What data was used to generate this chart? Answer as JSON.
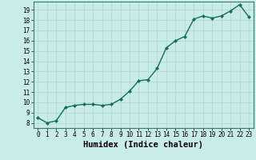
{
  "x": [
    0,
    1,
    2,
    3,
    4,
    5,
    6,
    7,
    8,
    9,
    10,
    11,
    12,
    13,
    14,
    15,
    16,
    17,
    18,
    19,
    20,
    21,
    22,
    23
  ],
  "y": [
    8.5,
    8.0,
    8.2,
    9.5,
    9.7,
    9.8,
    9.8,
    9.7,
    9.8,
    10.3,
    11.1,
    12.1,
    12.2,
    13.3,
    15.3,
    16.0,
    16.4,
    18.1,
    18.4,
    18.2,
    18.4,
    18.9,
    19.5,
    18.3
  ],
  "line_color": "#1a6b5e",
  "marker": "D",
  "marker_size": 2.0,
  "bg_color": "#c8ecea",
  "grid_color": "#b8d8d4",
  "xlabel": "Humidex (Indice chaleur)",
  "xlim": [
    -0.5,
    23.5
  ],
  "ylim": [
    7.5,
    19.8
  ],
  "yticks": [
    8,
    9,
    10,
    11,
    12,
    13,
    14,
    15,
    16,
    17,
    18,
    19
  ],
  "xticks": [
    0,
    1,
    2,
    3,
    4,
    5,
    6,
    7,
    8,
    9,
    10,
    11,
    12,
    13,
    14,
    15,
    16,
    17,
    18,
    19,
    20,
    21,
    22,
    23
  ],
  "tick_label_fontsize": 5.5,
  "xlabel_fontsize": 7.5,
  "line_width": 1.0
}
